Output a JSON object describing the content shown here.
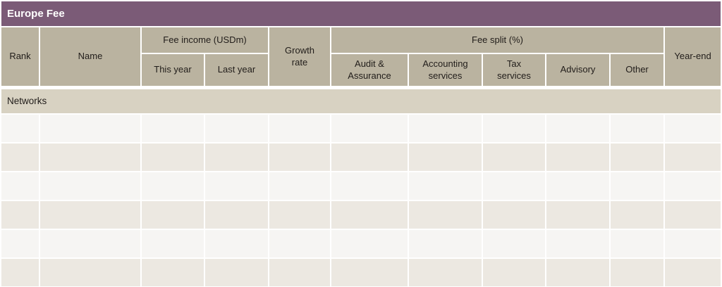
{
  "title": "Europe Fee",
  "table": {
    "column_count": 11,
    "headers": {
      "rank": "Rank",
      "name": "Name",
      "fee_income_group": "Fee income (USDm)",
      "this_year": "This year",
      "last_year": "Last year",
      "growth_rate": "Growth rate",
      "fee_split_group": "Fee split (%)",
      "audit_assurance": "Audit & Assurance",
      "accounting_services": "Accounting services",
      "tax_services": "Tax services",
      "advisory": "Advisory",
      "other": "Other",
      "year_end": "Year-end"
    },
    "section_label": "Networks",
    "body_rows": [
      [
        "",
        "",
        "",
        "",
        "",
        "",
        "",
        "",
        "",
        "",
        ""
      ],
      [
        "",
        "",
        "",
        "",
        "",
        "",
        "",
        "",
        "",
        "",
        ""
      ],
      [
        "",
        "",
        "",
        "",
        "",
        "",
        "",
        "",
        "",
        "",
        ""
      ],
      [
        "",
        "",
        "",
        "",
        "",
        "",
        "",
        "",
        "",
        "",
        ""
      ],
      [
        "",
        "",
        "",
        "",
        "",
        "",
        "",
        "",
        "",
        "",
        ""
      ],
      [
        "",
        "",
        "",
        "",
        "",
        "",
        "",
        "",
        "",
        "",
        ""
      ]
    ]
  },
  "colors": {
    "title-bg": "#7b5b77",
    "title-text": "#ffffff",
    "header-bg": "#bab3a0",
    "section-bg": "#d8d2c2",
    "row-light": "#f6f5f3",
    "row-dark": "#ece8e1",
    "text": "#211d1a",
    "grid": "#ffffff"
  }
}
